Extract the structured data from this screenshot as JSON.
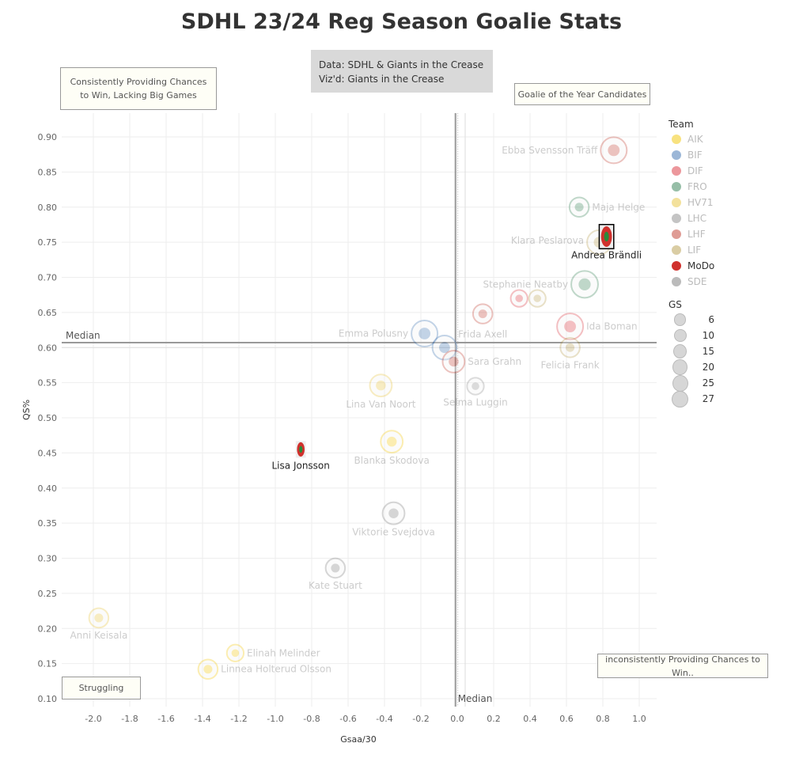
{
  "title": "SDHL 23/24 Reg Season Goalie Stats",
  "source": {
    "line1": "Data: SDHL & Giants in the Crease",
    "line2": "Viz'd: Giants in the Crease"
  },
  "annotations": {
    "top_left": "Consistently Providing Chances to Win, Lacking Big Games",
    "top_right": "Goalie of the Year Candidates",
    "bottom_left": "Struggling",
    "bottom_right": "inconsistently Providing Chances to Win.."
  },
  "legend": {
    "team_title": "Team",
    "teams": [
      {
        "name": "AIK",
        "color": "#f2c500",
        "highlighted": false
      },
      {
        "name": "BIF",
        "color": "#3a6fb0",
        "highlighted": false
      },
      {
        "name": "DIF",
        "color": "#d9303a",
        "highlighted": false
      },
      {
        "name": "FRO",
        "color": "#2e7d4f",
        "highlighted": false
      },
      {
        "name": "HV71",
        "color": "#e8c33a",
        "highlighted": false
      },
      {
        "name": "LHC",
        "color": "#8a8a8a",
        "highlighted": false
      },
      {
        "name": "LHF",
        "color": "#c0392b",
        "highlighted": false
      },
      {
        "name": "LIF",
        "color": "#b59b4a",
        "highlighted": false
      },
      {
        "name": "MoDo",
        "color": "#d0312d",
        "highlighted": true
      },
      {
        "name": "SDE",
        "color": "#777777",
        "highlighted": false
      }
    ],
    "gs_title": "GS",
    "gs_values": [
      6,
      10,
      15,
      20,
      25,
      27
    ]
  },
  "chart_data": {
    "type": "scatter",
    "title": "SDHL 23/24 Reg Season Goalie Stats",
    "xlabel": "Gsaa/30",
    "ylabel": "QS%",
    "xlim": [
      -2.2,
      1.1
    ],
    "ylim": [
      0.09,
      0.93
    ],
    "x_ticks": [
      "-2.0",
      "-1.8",
      "-1.6",
      "-1.4",
      "-1.2",
      "-1.0",
      "-0.8",
      "-0.6",
      "-0.4",
      "-0.2",
      "0.0",
      "0.2",
      "0.4",
      "0.6",
      "0.8",
      "1.0"
    ],
    "y_ticks": [
      "0.10",
      "0.15",
      "0.20",
      "0.25",
      "0.30",
      "0.35",
      "0.40",
      "0.45",
      "0.50",
      "0.55",
      "0.60",
      "0.65",
      "0.70",
      "0.75",
      "0.80",
      "0.85",
      "0.90"
    ],
    "grid": true,
    "legend_position": "right",
    "reference_lines": {
      "x_median": -0.01,
      "y_median": 0.607,
      "x_label": "Median",
      "y_label": "Median"
    },
    "points": [
      {
        "name": "Ebba Svensson Träff",
        "team": "LHF",
        "x": 0.86,
        "y": 0.881,
        "gs": 25
      },
      {
        "name": "Maja Helge",
        "team": "FRO",
        "x": 0.67,
        "y": 0.8,
        "gs": 10
      },
      {
        "name": "Klara Peslarova",
        "team": "LIF",
        "x": 0.78,
        "y": 0.75,
        "gs": 20
      },
      {
        "name": "Andrea Brändli",
        "team": "MoDo",
        "x": 0.82,
        "y": 0.758,
        "gs": 20
      },
      {
        "name": "Stephanie Neatby",
        "team": "FRO",
        "x": 0.7,
        "y": 0.69,
        "gs": 27
      },
      {
        "name": "",
        "team": "DIF",
        "x": 0.34,
        "y": 0.67,
        "gs": 6
      },
      {
        "name": "",
        "team": "LIF",
        "x": 0.44,
        "y": 0.67,
        "gs": 6
      },
      {
        "name": "Frida Axell",
        "team": "LHF",
        "x": 0.14,
        "y": 0.648,
        "gs": 10
      },
      {
        "name": "Ida Boman",
        "team": "DIF",
        "x": 0.62,
        "y": 0.63,
        "gs": 25
      },
      {
        "name": "Felicia Frank",
        "team": "LIF",
        "x": 0.62,
        "y": 0.6,
        "gs": 10
      },
      {
        "name": "Emma Polusny",
        "team": "BIF",
        "x": -0.18,
        "y": 0.62,
        "gs": 25
      },
      {
        "name": "",
        "team": "BIF",
        "x": -0.07,
        "y": 0.6,
        "gs": 20
      },
      {
        "name": "Sara Grahn",
        "team": "LHF",
        "x": -0.02,
        "y": 0.58,
        "gs": 15
      },
      {
        "name": "Selma Luggin",
        "team": "LHC",
        "x": 0.1,
        "y": 0.545,
        "gs": 6
      },
      {
        "name": "Lina Van Noort",
        "team": "HV71",
        "x": -0.42,
        "y": 0.546,
        "gs": 15
      },
      {
        "name": "Blanka Skodova",
        "team": "AIK",
        "x": -0.36,
        "y": 0.466,
        "gs": 15
      },
      {
        "name": "Lisa Jonsson",
        "team": "MoDo",
        "x": -0.86,
        "y": 0.455,
        "gs": 6
      },
      {
        "name": "Viktorie Svejdova",
        "team": "SDE",
        "x": -0.35,
        "y": 0.364,
        "gs": 15
      },
      {
        "name": "Kate Stuart",
        "team": "SDE",
        "x": -0.67,
        "y": 0.286,
        "gs": 10
      },
      {
        "name": "Anni Keisala",
        "team": "HV71",
        "x": -1.97,
        "y": 0.215,
        "gs": 10
      },
      {
        "name": "Elinah Melinder",
        "team": "AIK",
        "x": -1.22,
        "y": 0.165,
        "gs": 6
      },
      {
        "name": "Linnea Holterud Olsson",
        "team": "AIK",
        "x": -1.37,
        "y": 0.142,
        "gs": 10
      }
    ]
  }
}
